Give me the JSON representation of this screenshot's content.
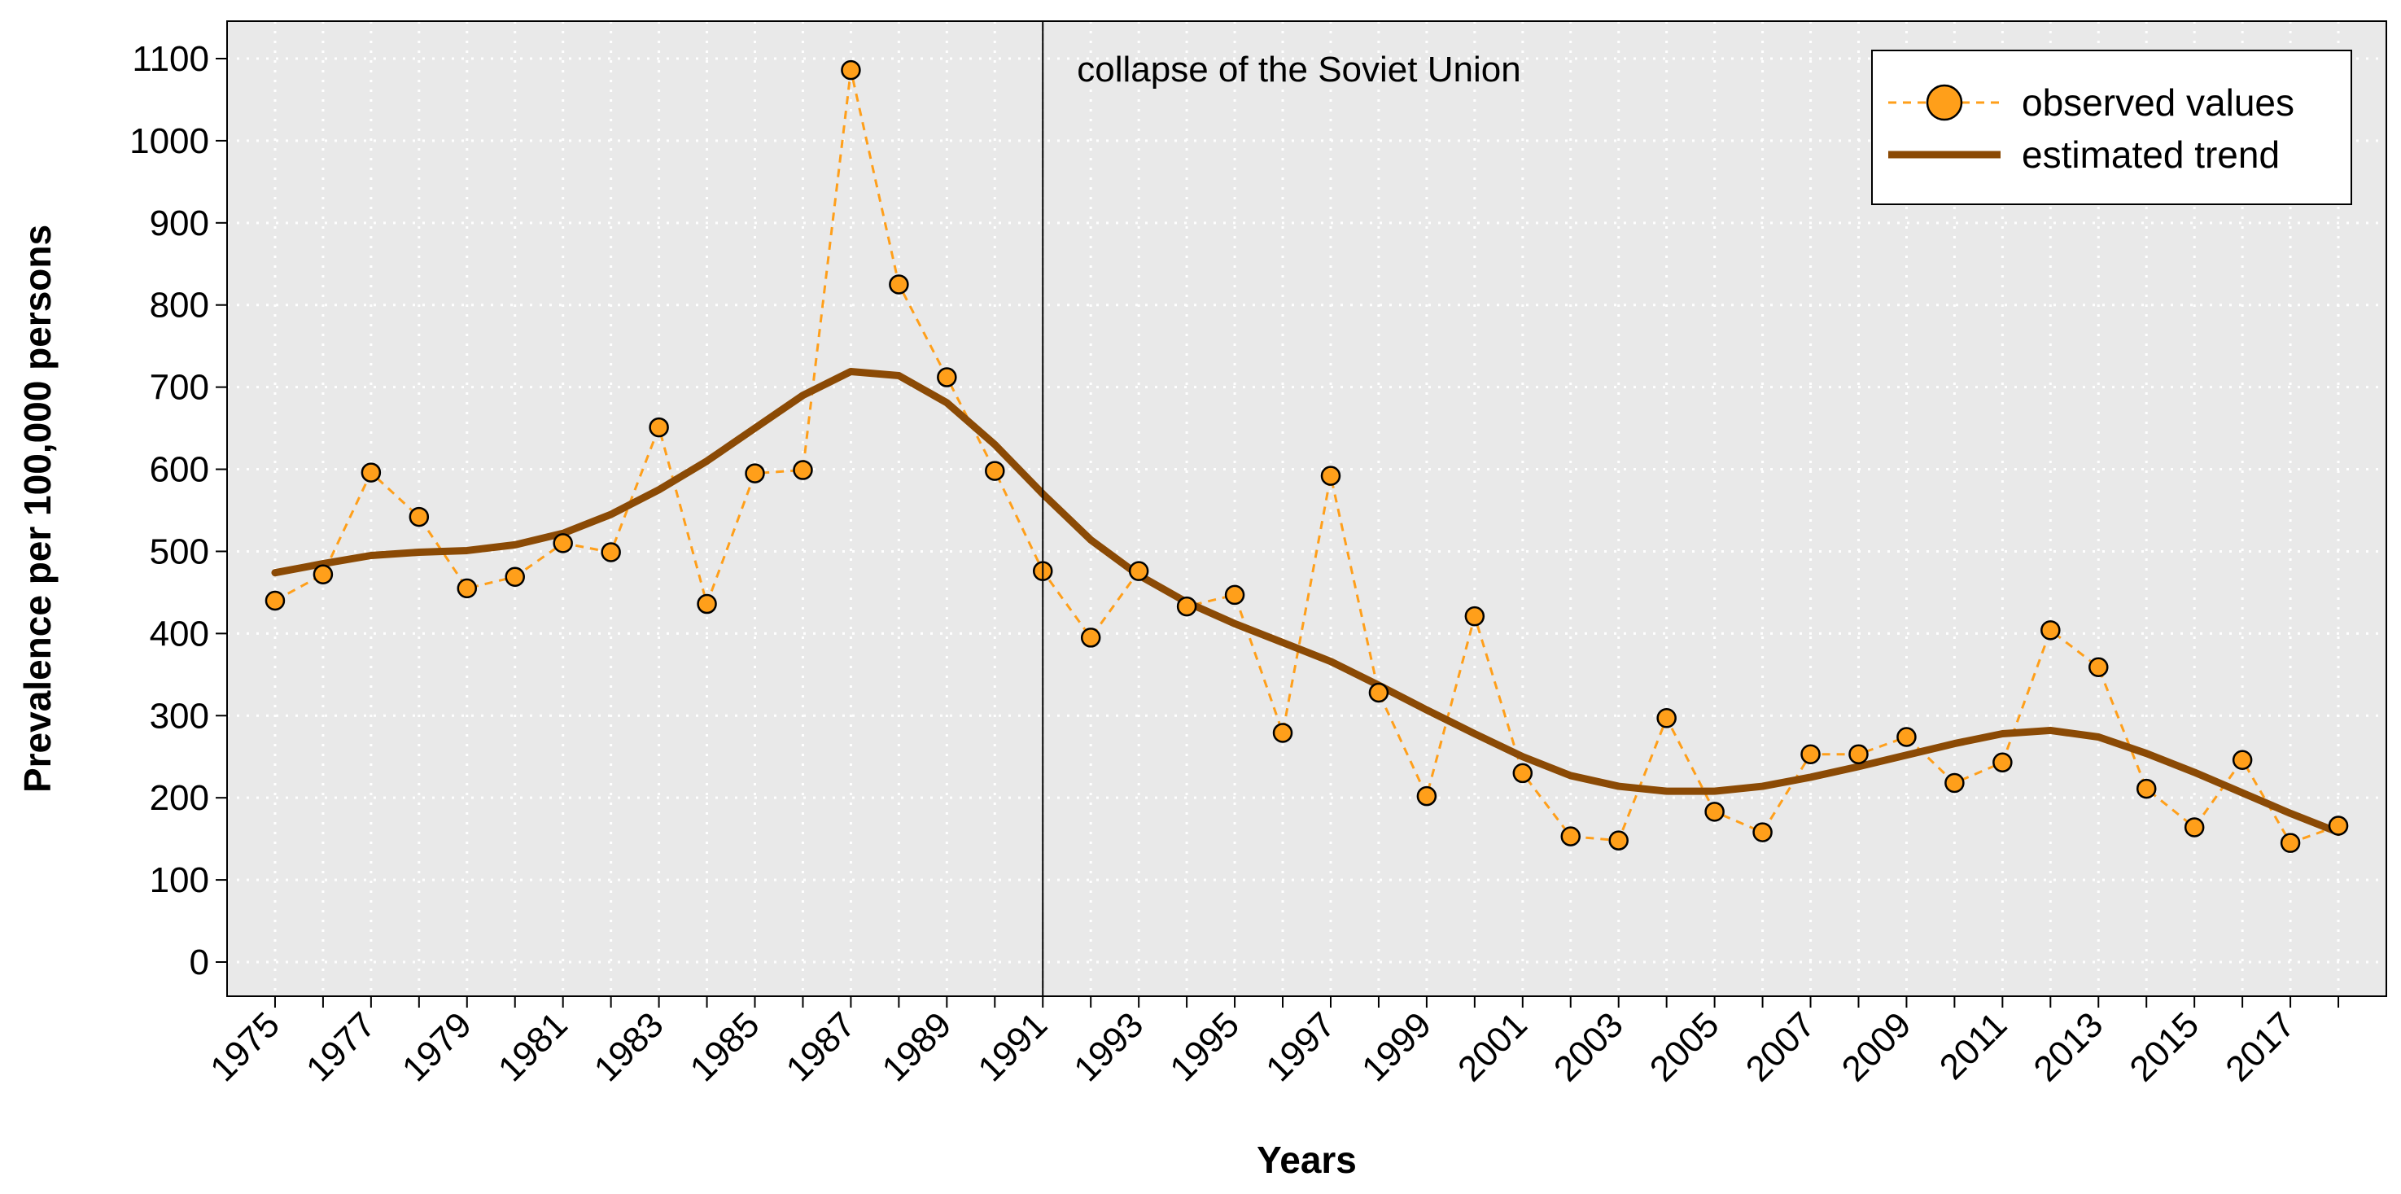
{
  "chart_data": {
    "type": "line",
    "title": "",
    "xlabel": "Years",
    "ylabel": "Prevalence per 100,000 persons",
    "xlim": [
      1974,
      2019
    ],
    "ylim": [
      0,
      1100
    ],
    "x_ticks": [
      1975,
      1977,
      1979,
      1981,
      1983,
      1985,
      1987,
      1989,
      1991,
      1993,
      1995,
      1997,
      1999,
      2001,
      2003,
      2005,
      2007,
      2009,
      2011,
      2013,
      2015,
      2017
    ],
    "y_ticks": [
      0,
      100,
      200,
      300,
      400,
      500,
      600,
      700,
      800,
      900,
      1000,
      1100
    ],
    "grid": true,
    "background": "#e9e9e9",
    "legend_position": "top-right",
    "annotation": {
      "x": 1991,
      "text": "collapse of the Soviet Union"
    },
    "series": [
      {
        "name": "observed values",
        "style": "dashed-with-points",
        "color": "#ff9f1a",
        "point_fill": "#ff9f1a",
        "point_stroke": "#000000",
        "x": [
          1975,
          1976,
          1977,
          1978,
          1979,
          1980,
          1981,
          1982,
          1983,
          1984,
          1985,
          1986,
          1987,
          1988,
          1989,
          1990,
          1991,
          1992,
          1993,
          1994,
          1995,
          1996,
          1997,
          1998,
          1999,
          2000,
          2001,
          2002,
          2003,
          2004,
          2005,
          2006,
          2007,
          2008,
          2009,
          2010,
          2011,
          2012,
          2013,
          2014,
          2015,
          2016,
          2017,
          2018
        ],
        "y": [
          440,
          472,
          596,
          542,
          455,
          469,
          510,
          499,
          651,
          436,
          595,
          599,
          1086,
          825,
          712,
          598,
          476,
          395,
          476,
          433,
          447,
          279,
          592,
          328,
          202,
          421,
          230,
          153,
          148,
          297,
          183,
          158,
          253,
          253,
          274,
          218,
          243,
          404,
          359,
          211,
          164,
          246,
          145,
          166
        ]
      },
      {
        "name": "estimated trend",
        "style": "solid",
        "color": "#8b4a05",
        "x": [
          1975,
          1976,
          1977,
          1978,
          1979,
          1980,
          1981,
          1982,
          1983,
          1984,
          1985,
          1986,
          1987,
          1988,
          1989,
          1990,
          1991,
          1992,
          1993,
          1994,
          1995,
          1996,
          1997,
          1998,
          1999,
          2000,
          2001,
          2002,
          2003,
          2004,
          2005,
          2006,
          2007,
          2008,
          2009,
          2010,
          2011,
          2012,
          2013,
          2014,
          2015,
          2016,
          2017,
          2018
        ],
        "y": [
          474,
          485,
          495,
          499,
          501,
          508,
          522,
          545,
          575,
          610,
          650,
          690,
          719,
          714,
          681,
          630,
          570,
          514,
          471,
          438,
          412,
          389,
          366,
          337,
          307,
          278,
          250,
          227,
          214,
          208,
          208,
          214,
          225,
          238,
          252,
          266,
          278,
          282,
          274,
          254,
          231,
          206,
          181,
          158
        ]
      }
    ]
  }
}
